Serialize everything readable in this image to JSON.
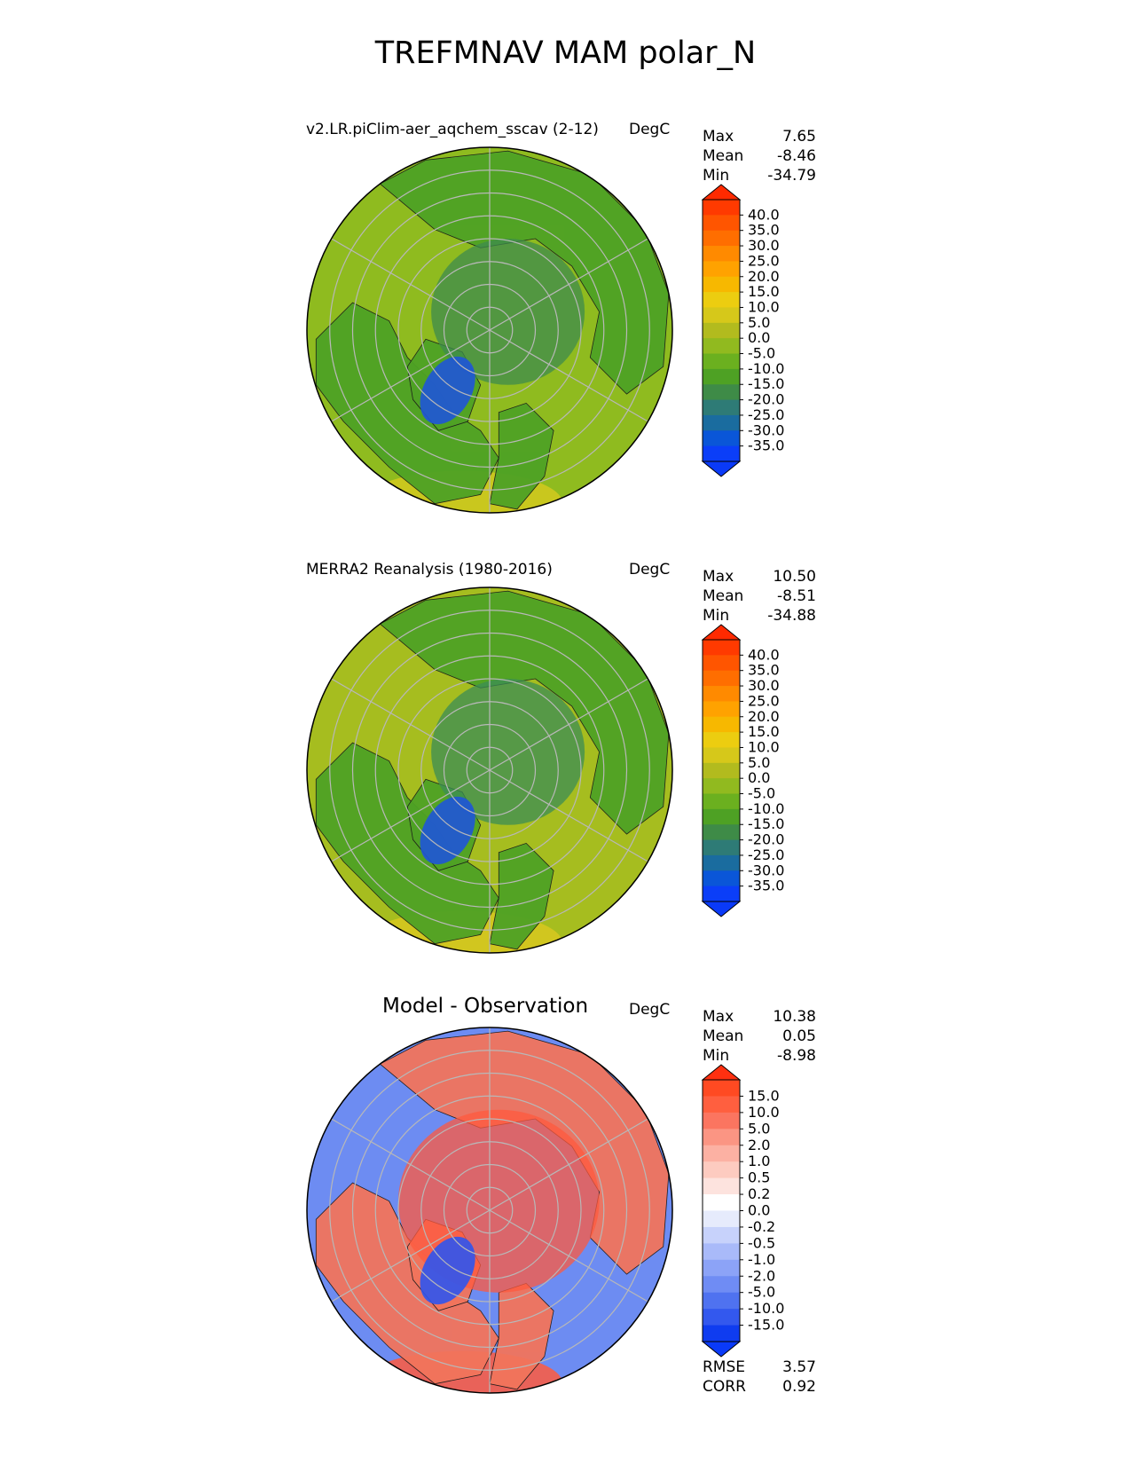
{
  "title": "TREFMNAV MAM polar_N",
  "panels": [
    {
      "title": "v2.LR.piClim-aer_aqchem_sscav (2-12)",
      "units": "DegC",
      "stats": [
        {
          "label": "Max",
          "value": "7.65"
        },
        {
          "label": "Mean",
          "value": "-8.46"
        },
        {
          "label": "Min",
          "value": "-34.79"
        }
      ],
      "colorbar": {
        "labels": [
          "40.0",
          "35.0",
          "30.0",
          "25.0",
          "20.0",
          "15.0",
          "10.0",
          "5.0",
          "0.0",
          "-5.0",
          "-10.0",
          "-15.0",
          "-20.0",
          "-25.0",
          "-30.0",
          "-35.0"
        ],
        "colors": [
          "#ff3a00",
          "#ff5500",
          "#ff6e00",
          "#ff8a00",
          "#ffa200",
          "#f7b800",
          "#eccd10",
          "#d6c81a",
          "#b2bb1e",
          "#91ba1f",
          "#6bb01f",
          "#4ea124",
          "#3e8b47",
          "#2e7b76",
          "#1a6c9f",
          "#0a56d8",
          "#0b3ef8"
        ],
        "max_color": "#ff2a00",
        "min_color": "#0a3af8"
      },
      "map": {
        "ocean": "#8fbb1f",
        "land": "#4fa225",
        "cold": "#1f55d8",
        "mid": "#3d8b4e",
        "warm": "#d4c91f"
      }
    },
    {
      "title": "MERRA2 Reanalysis (1980-2016)",
      "units": "DegC",
      "stats": [
        {
          "label": "Max",
          "value": "10.50"
        },
        {
          "label": "Mean",
          "value": "-8.51"
        },
        {
          "label": "Min",
          "value": "-34.88"
        }
      ],
      "colorbar": {
        "labels": [
          "40.0",
          "35.0",
          "30.0",
          "25.0",
          "20.0",
          "15.0",
          "10.0",
          "5.0",
          "0.0",
          "-5.0",
          "-10.0",
          "-15.0",
          "-20.0",
          "-25.0",
          "-30.0",
          "-35.0"
        ],
        "colors": [
          "#ff3a00",
          "#ff5500",
          "#ff6e00",
          "#ff8a00",
          "#ffa200",
          "#f7b800",
          "#eccd10",
          "#d6c81a",
          "#b2bb1e",
          "#91ba1f",
          "#6bb01f",
          "#4ea124",
          "#3e8b47",
          "#2e7b76",
          "#1a6c9f",
          "#0a56d8",
          "#0b3ef8"
        ],
        "max_color": "#ff2a00",
        "min_color": "#0a3af8"
      },
      "map": {
        "ocean": "#a6bd1f",
        "land": "#4fa225",
        "cold": "#1f55d8",
        "mid": "#3b8d55",
        "warm": "#d8c820"
      }
    },
    {
      "title": "Model - Observation",
      "units": "DegC",
      "stats": [
        {
          "label": "Max",
          "value": "10.38"
        },
        {
          "label": "Mean",
          "value": "0.05"
        },
        {
          "label": "Min",
          "value": "-8.98"
        }
      ],
      "colorbar": {
        "labels": [
          "15.0",
          "10.0",
          "5.0",
          "2.0",
          "1.0",
          "0.5",
          "0.2",
          "0.0",
          "-0.2",
          "-0.5",
          "-1.0",
          "-2.0",
          "-5.0",
          "-10.0",
          "-15.0"
        ],
        "colors": [
          "#ff4a22",
          "#ff5f3f",
          "#fb7560",
          "#fb9583",
          "#fcb1a3",
          "#fdcbc0",
          "#fde3de",
          "#ffffff",
          "#e6ebfc",
          "#c7d2fb",
          "#a9baf9",
          "#8ca3f7",
          "#6f8cf4",
          "#4f72f0",
          "#3358ee",
          "#0f3cf0"
        ],
        "max_color": "#ff3010",
        "min_color": "#0a3af8"
      },
      "map": {
        "ocean": "#6d8cf2",
        "land": "#f2745c",
        "cold": "#2f55ee",
        "mid": "#e8eefb",
        "warm": "#ff5a3e"
      },
      "extra_stats": [
        {
          "label": "RMSE",
          "value": "3.57"
        },
        {
          "label": "CORR",
          "value": "0.92"
        }
      ]
    }
  ],
  "chart_data": {
    "type": "heatmap",
    "title": "TREFMNAV MAM polar_N",
    "projection": "north-polar-stereographic",
    "panels": [
      {
        "title": "v2.LR.piClim-aer_aqchem_sscav (2-12)",
        "units": "DegC",
        "max": 7.65,
        "mean": -8.46,
        "min": -34.79,
        "levels": [
          -35,
          -30,
          -25,
          -20,
          -15,
          -10,
          -5,
          0,
          5,
          10,
          15,
          20,
          25,
          30,
          35,
          40
        ]
      },
      {
        "title": "MERRA2 Reanalysis (1980-2016)",
        "units": "DegC",
        "max": 10.5,
        "mean": -8.51,
        "min": -34.88,
        "levels": [
          -35,
          -30,
          -25,
          -20,
          -15,
          -10,
          -5,
          0,
          5,
          10,
          15,
          20,
          25,
          30,
          35,
          40
        ]
      },
      {
        "title": "Model - Observation",
        "units": "DegC",
        "max": 10.38,
        "mean": 0.05,
        "min": -8.98,
        "levels": [
          -15,
          -10,
          -5,
          -2,
          -1,
          -0.5,
          -0.2,
          0,
          0.2,
          0.5,
          1,
          2,
          5,
          10,
          15
        ],
        "rmse": 3.57,
        "corr": 0.92
      }
    ]
  }
}
